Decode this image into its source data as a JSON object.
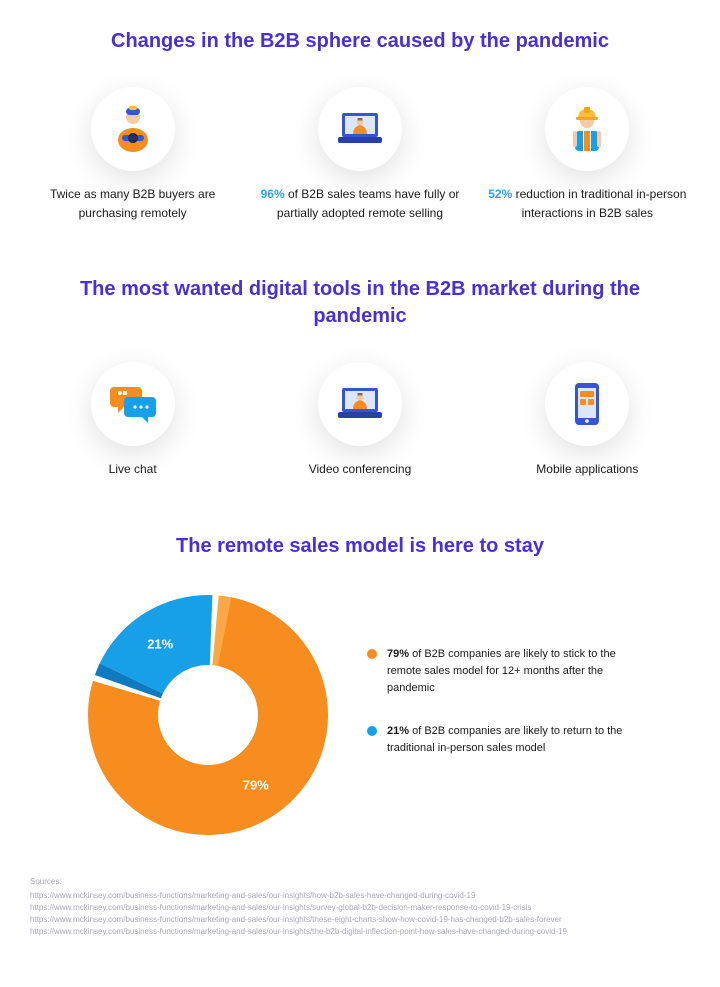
{
  "colors": {
    "title": "#4a2fd6",
    "highlight": "#2aa3ef",
    "text": "#1a1a1a",
    "sources": "#a8a8b8",
    "orange": "#f78d1e",
    "orange_light": "#fca94a",
    "blue": "#17a0e8",
    "blue_dark": "#0e7ac0",
    "yellow": "#fcbf3a",
    "skin": "#f9c9a3",
    "purple": "#6b4ee0",
    "circle_bg": "#ffffff"
  },
  "section1": {
    "title": "Changes in the B2B sphere caused by the pandemic",
    "items": [
      {
        "icon": "buyer",
        "prefix": "",
        "text": "Twice as many B2B buyers are purchasing remotely"
      },
      {
        "icon": "laptop-video",
        "prefix": "96%",
        "text": " of B2B sales teams have fully or partially adopted remote selling"
      },
      {
        "icon": "worker",
        "prefix": "52%",
        "text": " reduction in traditional in-person interactions in B2B sales"
      }
    ]
  },
  "section2": {
    "title": "The most wanted digital tools in the B2B market during the pandemic",
    "items": [
      {
        "icon": "chat",
        "label": "Live chat"
      },
      {
        "icon": "laptop-video",
        "label": "Video conferencing"
      },
      {
        "icon": "mobile",
        "label": "Mobile applications"
      }
    ]
  },
  "section3": {
    "title": "The remote sales model is here to stay",
    "donut": {
      "type": "donut",
      "slices": [
        {
          "value": 79,
          "label": "79%",
          "color": "#f78d1e",
          "edge_color": "#fba647"
        },
        {
          "value": 21,
          "label": "21%",
          "color": "#17a0e8",
          "edge_color": "#0e7ac0"
        }
      ],
      "size": 240,
      "thickness_outer": 120,
      "thickness_inner": 50,
      "gap_deg": 3,
      "label_fontsize": 13,
      "label_color": "#ffffff"
    },
    "legend": [
      {
        "color": "#f78d1e",
        "pct": "79%",
        "text": " of B2B companies are likely to stick to the remote sales model for 12+ months after the pandemic"
      },
      {
        "color": "#17a0e8",
        "pct": "21%",
        "text": " of B2B companies are likely to return to the traditional in-person sales model"
      }
    ]
  },
  "sources": {
    "title": "Sources:",
    "lines": [
      "https://www.mckinsey.com/business-functions/marketing-and-sales/our-insights/how-b2b-sales-have-changed-during-covid-19",
      "https://www.mckinsey.com/business-functions/marketing-and-sales/our-insights/survey-global-b2b-decision-maker-response-to-covid-19-crisis",
      "https://www.mckinsey.com/business-functions/marketing-and-sales/our-insights/these-eight-charts-show-how-covid-19-has-changed-b2b-sales-forever",
      "https://www.mckinsey.com/business-functions/marketing-and-sales/our-insights/the-b2b-digital-inflection-point-how-sales-have-changed-during-covid-19"
    ]
  }
}
